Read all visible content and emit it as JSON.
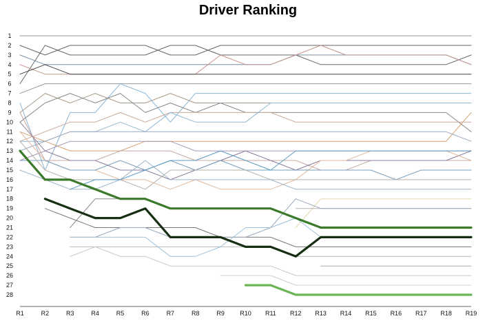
{
  "chart_data": {
    "type": "line",
    "title": "Driver Ranking",
    "xlabel": "",
    "ylabel": "",
    "categories": [
      "R1",
      "R2",
      "R3",
      "R4",
      "R5",
      "R6",
      "R7",
      "R8",
      "R9",
      "R10",
      "R11",
      "R12",
      "R13",
      "R14",
      "R15",
      "R16",
      "R17",
      "R18",
      "R19"
    ],
    "y_ticks": [
      1,
      2,
      3,
      4,
      5,
      6,
      7,
      8,
      9,
      10,
      11,
      12,
      13,
      14,
      15,
      16,
      17,
      18,
      19,
      20,
      21,
      22,
      23,
      24,
      25,
      26,
      27,
      28
    ],
    "ylim": [
      1,
      28
    ],
    "y_inverted": true,
    "grid": false,
    "legend": "none",
    "series": [
      {
        "color": "#aaaaaa",
        "width": 1.2,
        "values": [
          1,
          1,
          1,
          1,
          1,
          1,
          1,
          1,
          1,
          1,
          1,
          1,
          1,
          1,
          1,
          1,
          1,
          1,
          1
        ]
      },
      {
        "color": "#666666",
        "width": 1,
        "values": [
          2,
          3,
          2,
          2,
          2,
          2,
          3,
          3,
          2,
          2,
          2,
          2,
          2,
          2,
          2,
          2,
          2,
          2,
          2
        ]
      },
      {
        "color": "#666666",
        "width": 1,
        "values": [
          6,
          2,
          3,
          3,
          3,
          3,
          2,
          2,
          3,
          3,
          3,
          3,
          4,
          4,
          4,
          4,
          4,
          4,
          3
        ]
      },
      {
        "color": "#7a8fa8",
        "width": 1,
        "values": [
          3,
          4,
          4,
          4,
          4,
          4,
          4,
          4,
          4,
          4,
          4,
          3,
          3,
          3,
          3,
          3,
          3,
          3,
          4
        ]
      },
      {
        "color": "#c4948c",
        "width": 1,
        "values": [
          4,
          5,
          5,
          5,
          5,
          5,
          5,
          5,
          3,
          4,
          4,
          3,
          2,
          3,
          3,
          3,
          3,
          3,
          4
        ]
      },
      {
        "color": "#444444",
        "width": 1,
        "values": [
          5,
          4,
          5,
          5,
          5,
          5,
          5,
          5,
          5,
          5,
          5,
          5,
          5,
          5,
          5,
          5,
          5,
          5,
          5
        ]
      },
      {
        "color": "#999999",
        "width": 1,
        "values": [
          7,
          6,
          6,
          6,
          6,
          6,
          6,
          6,
          6,
          6,
          6,
          6,
          6,
          6,
          6,
          6,
          6,
          6,
          6
        ]
      },
      {
        "color": "#8ab4d4",
        "width": 1,
        "values": [
          8,
          15,
          9,
          9,
          6,
          7,
          10,
          7,
          7,
          7,
          7,
          7,
          7,
          7,
          7,
          7,
          7,
          7,
          7
        ]
      },
      {
        "color": "#a89a8a",
        "width": 1,
        "values": [
          9,
          7,
          8,
          7,
          8,
          8,
          7,
          8,
          8,
          8,
          8,
          8,
          8,
          8,
          8,
          8,
          8,
          8,
          8
        ]
      },
      {
        "color": "#888888",
        "width": 1,
        "values": [
          10,
          8,
          7,
          8,
          7,
          9,
          8,
          9,
          8,
          9,
          9,
          9,
          9,
          9,
          9,
          9,
          9,
          9,
          11
        ]
      },
      {
        "color": "#d4a070",
        "width": 1,
        "values": [
          11,
          12,
          13,
          13,
          13,
          12,
          12,
          12,
          12,
          12,
          12,
          12,
          12,
          12,
          12,
          12,
          12,
          12,
          9
        ]
      },
      {
        "color": "#c8a898",
        "width": 1,
        "values": [
          12,
          11,
          10,
          10,
          9,
          10,
          9,
          9,
          9,
          9,
          9,
          10,
          10,
          10,
          10,
          10,
          10,
          10,
          10
        ]
      },
      {
        "color": "#8fb7d0",
        "width": 1,
        "values": [
          12,
          12,
          11,
          11,
          10,
          11,
          9,
          10,
          10,
          10,
          8,
          8,
          8,
          8,
          8,
          8,
          8,
          8,
          8
        ]
      },
      {
        "color": "#9aa8bc",
        "width": 1,
        "values": [
          13,
          12,
          11,
          11,
          11,
          11,
          11,
          11,
          11,
          11,
          11,
          11,
          11,
          11,
          11,
          11,
          11,
          11,
          12
        ]
      },
      {
        "color": "#a898b8",
        "width": 1,
        "values": [
          14,
          13,
          12,
          12,
          12,
          12,
          12,
          13,
          13,
          13,
          13,
          13,
          13,
          13,
          13,
          13,
          13,
          13,
          13
        ]
      },
      {
        "color": "#c4a8a0",
        "width": 1,
        "values": [
          9,
          14,
          14,
          14,
          13,
          13,
          13,
          14,
          14,
          14,
          14,
          14,
          15,
          15,
          14,
          14,
          14,
          14,
          14
        ]
      },
      {
        "color": "#8c7c9c",
        "width": 1,
        "values": [
          10,
          13,
          14,
          14,
          15,
          15,
          16,
          15,
          14,
          13,
          14,
          15,
          14,
          14,
          14,
          14,
          14,
          14,
          13
        ]
      },
      {
        "color": "#e0b89c",
        "width": 1,
        "values": [
          11,
          14,
          15,
          15,
          16,
          16,
          17,
          16,
          17,
          17,
          17,
          16,
          14,
          14,
          13,
          13,
          13,
          13,
          14
        ]
      },
      {
        "color": "#7a9fbc",
        "width": 1,
        "values": [
          14,
          14,
          15,
          15,
          14,
          15,
          14,
          15,
          14,
          15,
          15,
          15,
          15,
          15,
          15,
          16,
          15,
          15,
          15
        ]
      },
      {
        "color": "#b8b0a8",
        "width": 1,
        "values": [
          12,
          15,
          16,
          16,
          16,
          17,
          15,
          15,
          15,
          15,
          16,
          16,
          16,
          16,
          16,
          16,
          16,
          16,
          16
        ]
      },
      {
        "color": "#9cb4c8",
        "width": 1,
        "values": [
          15,
          16,
          17,
          17,
          16,
          14,
          16,
          16,
          16,
          16,
          16,
          17,
          17,
          17,
          17,
          17,
          17,
          17,
          17
        ]
      },
      {
        "color": "#5c9bc2",
        "width": 1,
        "values": [
          null,
          null,
          17,
          16,
          16,
          15,
          14,
          14,
          13,
          14,
          15,
          13,
          13,
          13,
          13,
          13,
          13,
          13,
          13
        ]
      },
      {
        "color": "#e6d8b0",
        "width": 1,
        "values": [
          null,
          null,
          null,
          null,
          null,
          null,
          null,
          null,
          null,
          null,
          null,
          21,
          18,
          18,
          18,
          18,
          18,
          18,
          18
        ]
      },
      {
        "color": "#b4b4b4",
        "width": 1,
        "values": [
          null,
          null,
          null,
          null,
          null,
          null,
          null,
          null,
          null,
          null,
          null,
          19,
          19,
          19,
          19,
          19,
          19,
          19,
          19
        ]
      },
      {
        "color": "#777777",
        "width": 1,
        "values": [
          null,
          19,
          20,
          21,
          21,
          21,
          21,
          21,
          22,
          22,
          22,
          23,
          23,
          23,
          23,
          23,
          23,
          23,
          23
        ]
      },
      {
        "color": "#888888",
        "width": 1,
        "values": [
          null,
          null,
          21,
          18,
          18,
          18,
          19,
          19,
          19,
          19,
          19,
          20,
          21,
          21,
          21,
          21,
          21,
          21,
          21
        ]
      },
      {
        "color": "#9aa8bc",
        "width": 1,
        "values": [
          null,
          null,
          22,
          22,
          21,
          21,
          22,
          22,
          22,
          22,
          21,
          18,
          19,
          19,
          19,
          19,
          19,
          19,
          19
        ]
      },
      {
        "color": "#b8b8b8",
        "width": 1,
        "values": [
          null,
          null,
          23,
          23,
          23,
          23,
          23,
          23,
          23,
          23,
          23,
          24,
          24,
          24,
          24,
          24,
          24,
          24,
          24
        ]
      },
      {
        "color": "#9cc0d8",
        "width": 1,
        "values": [
          null,
          null,
          22,
          22,
          22,
          22,
          24,
          24,
          23,
          21,
          21,
          20,
          22,
          22,
          22,
          22,
          22,
          22,
          22
        ]
      },
      {
        "color": "#c8c8c8",
        "width": 1,
        "values": [
          null,
          null,
          24,
          23,
          24,
          24,
          25,
          25,
          25,
          25,
          25,
          26,
          26,
          26,
          26,
          26,
          26,
          26,
          26
        ]
      },
      {
        "color": "#d0d0d0",
        "width": 1,
        "values": [
          null,
          null,
          null,
          null,
          null,
          null,
          null,
          null,
          26,
          26,
          26,
          27,
          27,
          27,
          27,
          27,
          27,
          27,
          27
        ]
      },
      {
        "color": "#aaaaaa",
        "width": 1,
        "values": [
          null,
          null,
          null,
          null,
          null,
          null,
          null,
          null,
          null,
          null,
          null,
          null,
          25,
          25,
          25,
          25,
          25,
          25,
          25
        ]
      },
      {
        "color": "#3a7a2a",
        "width": 3.2,
        "values": [
          13,
          16,
          16,
          17,
          18,
          18,
          19,
          19,
          19,
          19,
          19,
          20,
          21,
          21,
          21,
          21,
          21,
          21,
          21
        ]
      },
      {
        "color": "#162e12",
        "width": 3.2,
        "values": [
          null,
          18,
          19,
          20,
          20,
          19,
          22,
          22,
          22,
          23,
          23,
          24,
          22,
          22,
          22,
          22,
          22,
          22,
          22
        ]
      },
      {
        "color": "#6ab455",
        "width": 3.2,
        "values": [
          null,
          null,
          null,
          null,
          null,
          null,
          null,
          null,
          null,
          27,
          27,
          28,
          28,
          28,
          28,
          28,
          28,
          28,
          28
        ]
      }
    ]
  }
}
